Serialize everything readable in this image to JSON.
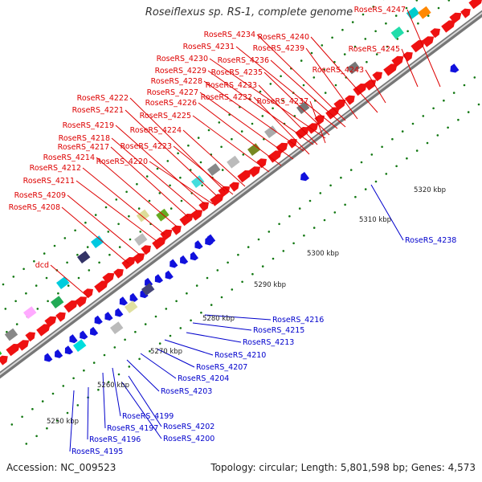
{
  "title": "Roseiflexus sp. RS-1, complete genome",
  "footer": {
    "accession": "Accession: NC_009523",
    "summary": "Topology: circular; Length: 5,801,598 bp; Genes: 4,573"
  },
  "colors": {
    "forward_label": "#dd0000",
    "reverse_label": "#0000cc",
    "forward_gene": "#ee1111",
    "reverse_gene": "#1111dd",
    "backbone": "#999999",
    "tick": "#117711"
  },
  "scale_labels": [
    "5250 kbp",
    "5260 kbp",
    "5270 kbp",
    "5280 kbp",
    "5290 kbp",
    "5300 kbp",
    "5310 kbp",
    "5320 kbp"
  ],
  "forward_labels": [
    "RoseRS_4247",
    "RoseRS_4234",
    "RoseRS_4240",
    "RoseRS_4231",
    "RoseRS_4239",
    "RoseRS_4230",
    "RoseRS_4236",
    "RoseRS_4245",
    "RoseRS_4229",
    "RoseRS_4243",
    "RoseRS_4235",
    "RoseRS_4228",
    "RoseRS_4233",
    "RoseRS_4227",
    "RoseRS_4232",
    "RoseRS_4222",
    "RoseRS_4226",
    "RoseRS_4237",
    "RoseRS_4221",
    "RoseRS_4225",
    "RoseRS_4219",
    "RoseRS_4224",
    "RoseRS_4218",
    "RoseRS_4223",
    "RoseRS_4217",
    "RoseRS_4214",
    "RoseRS_4220",
    "RoseRS_4212",
    "RoseRS_4211",
    "RoseRS_4209",
    "RoseRS_4208",
    "dcd"
  ],
  "reverse_labels": [
    "RoseRS_4238",
    "RoseRS_4216",
    "RoseRS_4215",
    "RoseRS_4213",
    "RoseRS_4210",
    "RoseRS_4207",
    "RoseRS_4204",
    "RoseRS_4203",
    "RoseRS_4199",
    "RoseRS_4202",
    "RoseRS_4197",
    "RoseRS_4200",
    "RoseRS_4196",
    "RoseRS_4195"
  ]
}
